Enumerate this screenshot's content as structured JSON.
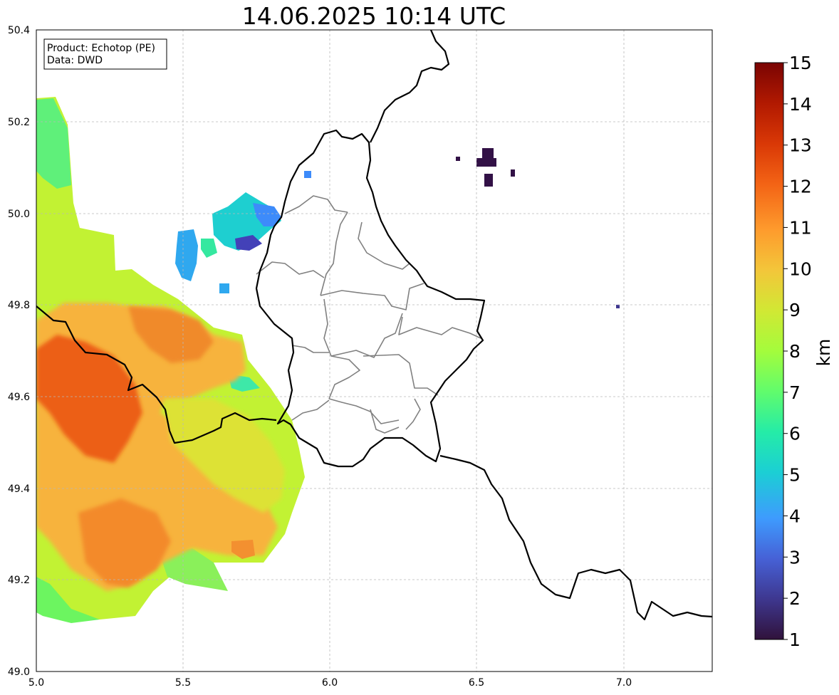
{
  "title": "14.06.2025 10:14 UTC",
  "info_box": {
    "product_line": "Product: Echotop (PE)",
    "data_line": "Data: DWD"
  },
  "map": {
    "lon_range": [
      5.0,
      7.3
    ],
    "lat_range": [
      49.0,
      50.4
    ],
    "lon_ticks": [
      "5.0",
      "5.5",
      "6.0",
      "6.5",
      "7.0"
    ],
    "lat_ticks": [
      "49.0",
      "49.2",
      "49.4",
      "49.6",
      "49.8",
      "50.0",
      "50.2",
      "50.4"
    ],
    "grid": true
  },
  "colorbar": {
    "label": "km",
    "range": [
      1,
      15
    ],
    "ticks": [
      "1",
      "2",
      "3",
      "4",
      "5",
      "6",
      "7",
      "8",
      "9",
      "10",
      "11",
      "12",
      "13",
      "14",
      "15"
    ],
    "colormap": "turbo"
  },
  "colors": {
    "border": "#000000",
    "admin_border": "#808080",
    "grid": "#b0b0b0"
  },
  "chart_data": {
    "type": "heatmap",
    "title": "14.06.2025 10:14 UTC",
    "unit": "km",
    "value_range": [
      1,
      15
    ],
    "xlim": [
      5.0,
      7.3
    ],
    "ylim": [
      49.0,
      50.4
    ],
    "echo_regions": [
      {
        "name": "west-cell-complex",
        "lon": [
          5.0,
          5.92
        ],
        "lat": [
          49.12,
          50.25
        ],
        "max_km": 12.5
      },
      {
        "name": "north-cluster",
        "lon": [
          5.47,
          5.85
        ],
        "lat": [
          49.85,
          50.04
        ],
        "typical_km": 4.5
      },
      {
        "name": "northeast-weak-echoes",
        "lon": [
          6.43,
          6.63
        ],
        "lat": [
          50.07,
          50.14
        ],
        "typical_km": 1.0
      },
      {
        "name": "isolated-pixel",
        "lon": [
          6.98,
          6.98
        ],
        "lat": [
          49.8,
          49.8
        ],
        "typical_km": 1.5
      }
    ]
  }
}
